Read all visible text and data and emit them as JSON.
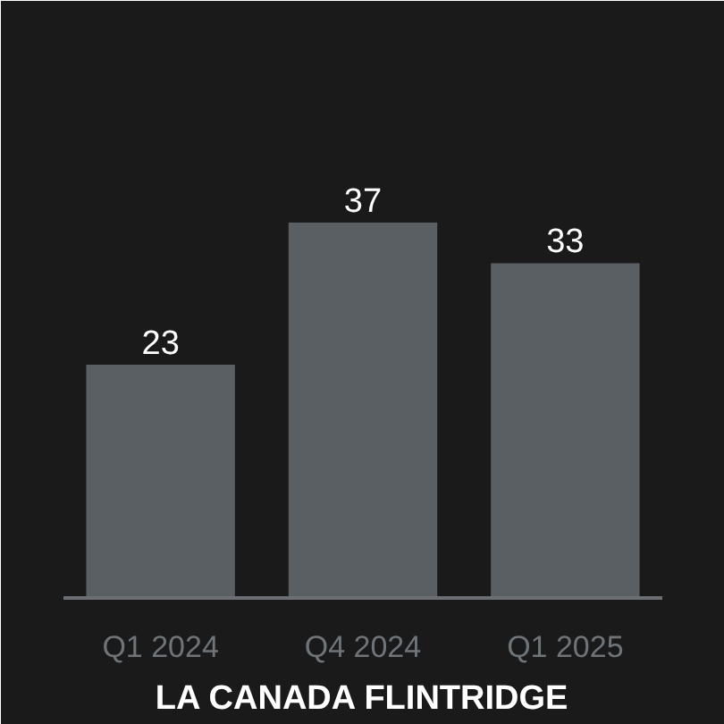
{
  "chart_data": {
    "type": "bar",
    "title": "LA CANADA FLINTRIDGE",
    "categories": [
      "Q1 2024",
      "Q4 2024",
      "Q1 2025"
    ],
    "values": [
      23,
      37,
      33
    ],
    "color": "#5a5f64",
    "data_labels": true,
    "tick_labels": "x"
  }
}
